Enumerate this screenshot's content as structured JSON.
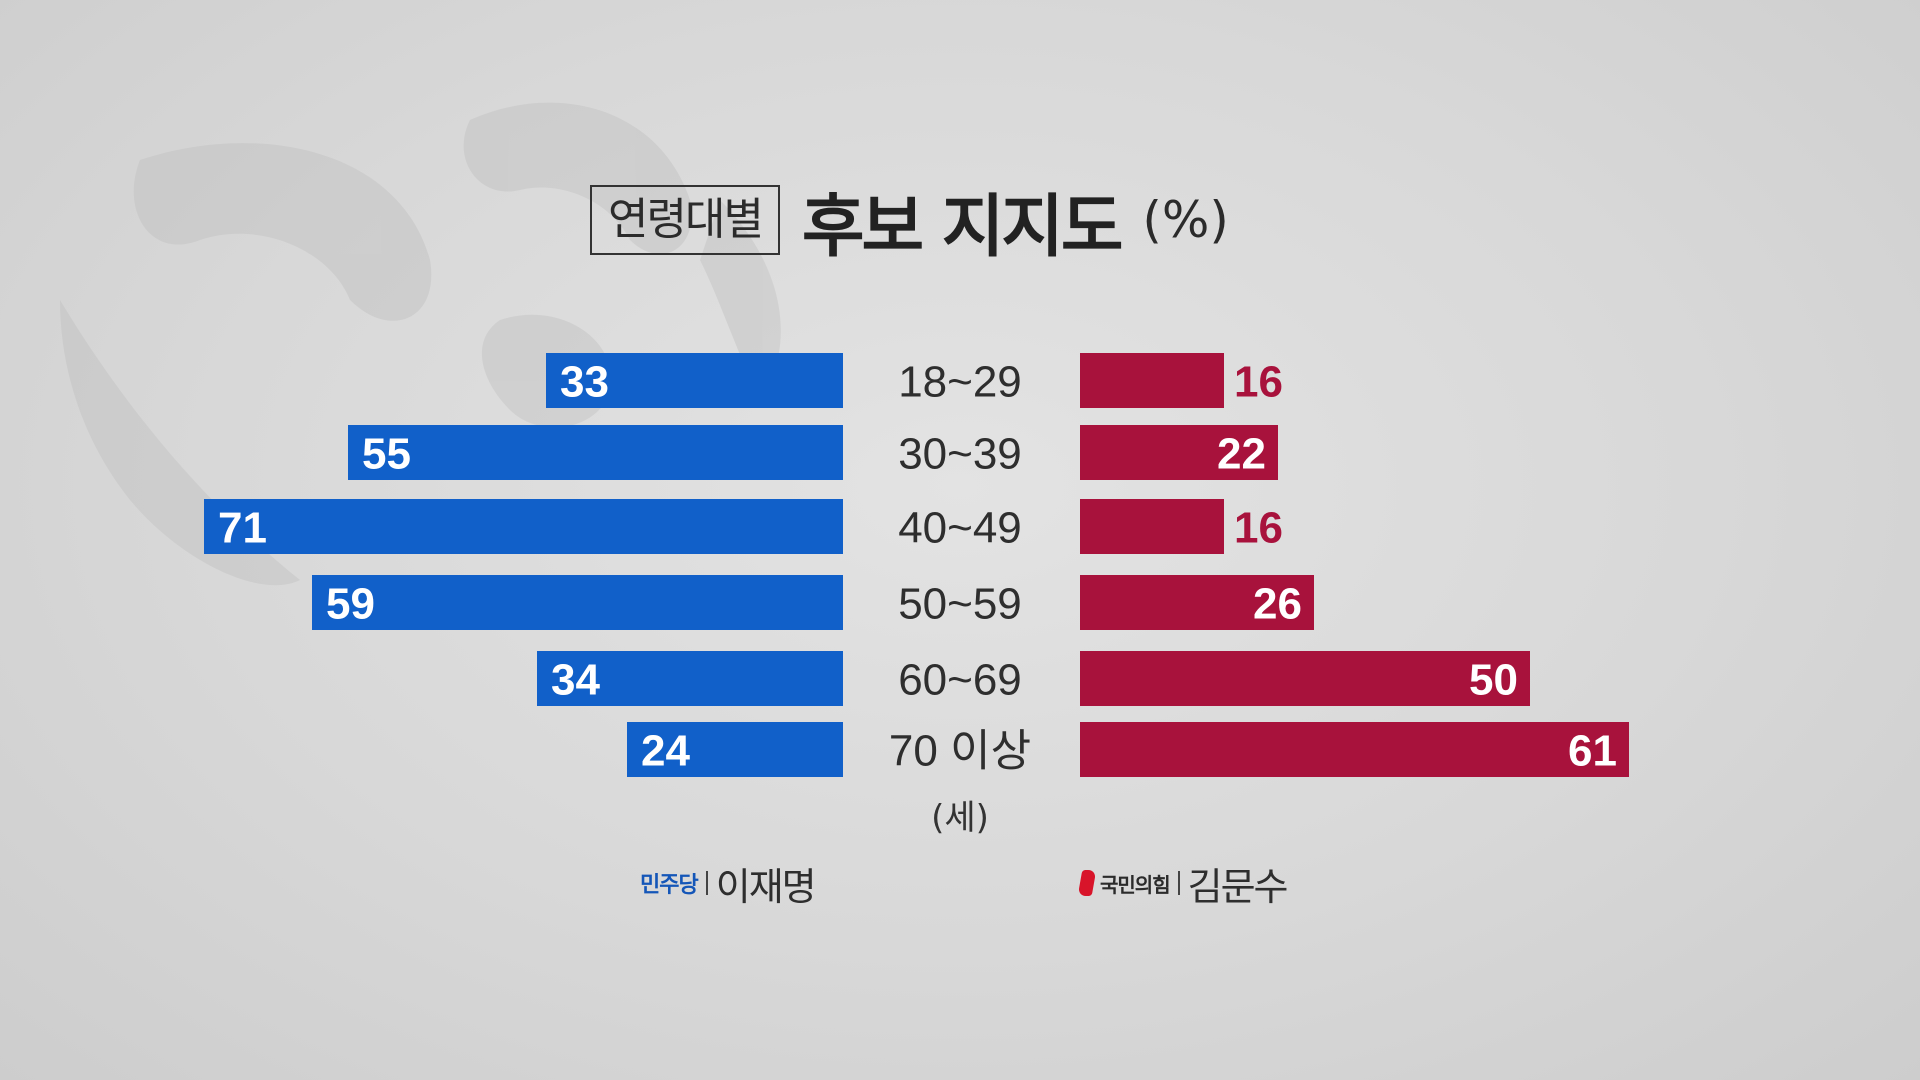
{
  "title": {
    "boxed": "연령대별",
    "main": "후보 지지도",
    "unit": "(%)"
  },
  "age_unit": "(세)",
  "colors": {
    "left_bar": "#1160c9",
    "right_bar": "#a8123c",
    "right_label_outside": "#a8123c",
    "label_inside": "#ffffff",
    "category_text": "#2e2e2e"
  },
  "legend": {
    "left": {
      "party_logo": "민주당",
      "candidate": "이재명"
    },
    "right": {
      "party_logo": "국민의힘",
      "candidate": "김문수"
    }
  },
  "chart_data": {
    "type": "bar",
    "categories": [
      "18~29",
      "30~39",
      "40~49",
      "50~59",
      "60~69",
      "70 이상"
    ],
    "series": [
      {
        "name": "이재명",
        "values": [
          33,
          55,
          71,
          59,
          34,
          24
        ]
      },
      {
        "name": "김문수",
        "values": [
          16,
          22,
          16,
          26,
          50,
          61
        ]
      }
    ],
    "title": "연령대별 후보 지지도 (%)",
    "xlabel": "(세)",
    "ylabel": "",
    "orientation": "horizontal-butterfly",
    "grid": false
  }
}
